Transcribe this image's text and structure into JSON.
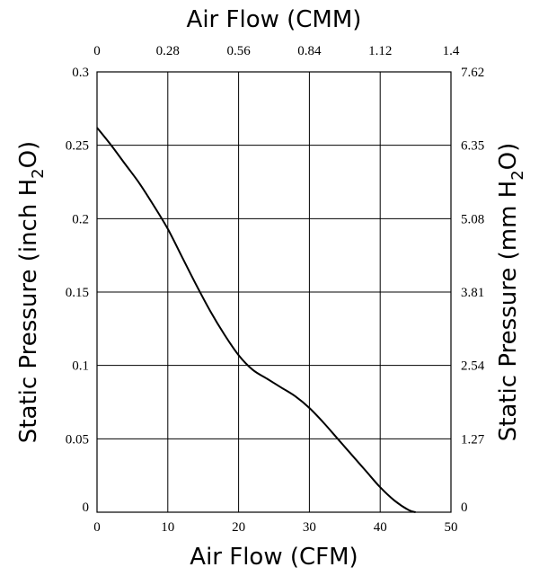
{
  "chart_data": {
    "type": "line",
    "title": "",
    "xlabel": "Air Flow (CFM)",
    "x2label": "Air Flow (CMM)",
    "ylabel": {
      "main": "Static Pressure (inch H",
      "sub": "2",
      "tail": "O)"
    },
    "y2label": {
      "main": "Static Pressure (mm H",
      "sub": "2",
      "tail": "O)"
    },
    "xlim": [
      0,
      50
    ],
    "ylim": [
      0,
      0.3
    ],
    "x_ticks": [
      "0",
      "10",
      "20",
      "30",
      "40",
      "50"
    ],
    "x2_ticks": [
      "0",
      "0.28",
      "0.56",
      "0.84",
      "1.12",
      "1.4"
    ],
    "y_ticks": [
      "0",
      "0.05",
      "0.1",
      "0.15",
      "0.2",
      "0.25",
      "0.3"
    ],
    "y2_ticks": [
      "0",
      "1.27",
      "2.54",
      "3.81",
      "5.08",
      "6.35",
      "7.62"
    ],
    "grid": true,
    "series": [
      {
        "x": [
          0,
          2,
          4,
          6,
          8,
          10,
          12,
          14,
          16,
          18,
          20,
          22,
          24,
          26,
          28,
          30,
          32,
          34,
          36,
          38,
          40,
          42,
          44,
          45
        ],
        "y": [
          0.262,
          0.25,
          0.237,
          0.224,
          0.209,
          0.193,
          0.174,
          0.155,
          0.137,
          0.121,
          0.107,
          0.097,
          0.091,
          0.085,
          0.079,
          0.071,
          0.061,
          0.05,
          0.039,
          0.028,
          0.017,
          0.008,
          0.0015,
          0
        ]
      }
    ]
  }
}
